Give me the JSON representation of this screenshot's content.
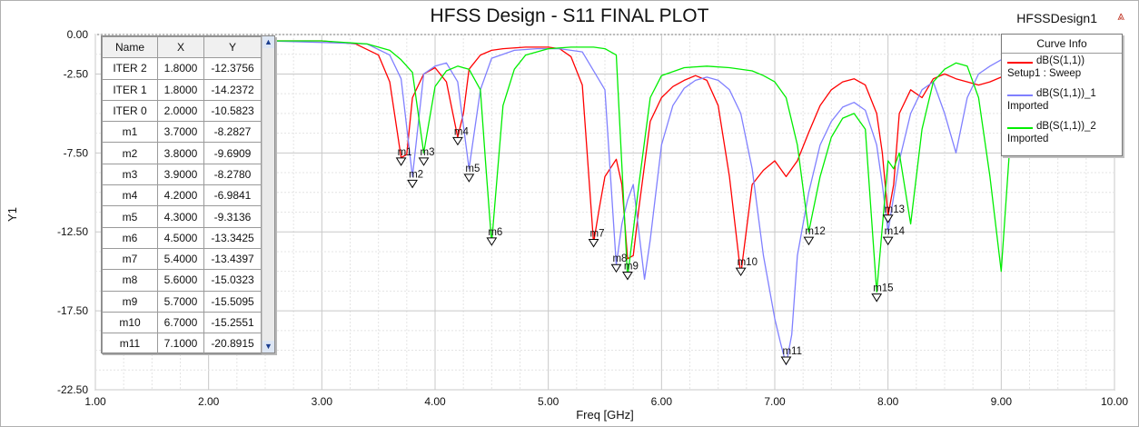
{
  "header": {
    "title": "HFSS Design - S11 FINAL PLOT",
    "design_name": "HFSSDesign1"
  },
  "chart_data": {
    "type": "line",
    "title": "HFSS Design - S11 FINAL PLOT",
    "xlabel": "Freq [GHz]",
    "ylabel": "Y1",
    "xlim": [
      1.0,
      10.0
    ],
    "ylim": [
      -22.5,
      0.0
    ],
    "xticks": [
      "1.00",
      "2.00",
      "3.00",
      "4.00",
      "5.00",
      "6.00",
      "7.00",
      "8.00",
      "9.00",
      "10.00"
    ],
    "yticks": [
      "0.00",
      "-2.50",
      "-7.50",
      "-12.50",
      "-17.50",
      "-22.50"
    ],
    "grid": true,
    "legend_title": "Curve Info",
    "legend_position": "top-right",
    "series": [
      {
        "name": "dB(S(1,1))",
        "sub": "Setup1 : Sweep",
        "color": "#ff0000",
        "x": [
          2.5,
          3.0,
          3.3,
          3.5,
          3.6,
          3.7,
          3.75,
          3.8,
          3.9,
          4.0,
          4.1,
          4.2,
          4.25,
          4.3,
          4.4,
          4.5,
          4.6,
          4.8,
          5.0,
          5.1,
          5.2,
          5.3,
          5.4,
          5.45,
          5.5,
          5.6,
          5.65,
          5.7,
          5.75,
          5.8,
          5.9,
          6.0,
          6.1,
          6.2,
          6.3,
          6.4,
          6.5,
          6.6,
          6.7,
          6.8,
          6.9,
          7.0,
          7.1,
          7.2,
          7.3,
          7.4,
          7.5,
          7.6,
          7.7,
          7.8,
          7.9,
          7.95,
          8.0,
          8.05,
          8.1,
          8.2,
          8.3,
          8.4,
          8.5,
          8.6,
          8.7,
          8.8,
          8.9,
          9.0,
          9.1,
          9.2,
          9.3,
          9.4
        ],
        "y": [
          -0.4,
          -0.4,
          -0.6,
          -1.3,
          -3.0,
          -7.8,
          -7.6,
          -4.0,
          -2.5,
          -2.1,
          -3.0,
          -6.5,
          -5.0,
          -2.2,
          -1.3,
          -1.0,
          -0.9,
          -0.8,
          -0.8,
          -0.9,
          -1.4,
          -3.2,
          -13.2,
          -11.0,
          -9.0,
          -7.9,
          -9.5,
          -14.2,
          -14.0,
          -11.0,
          -5.5,
          -4.0,
          -3.3,
          -2.9,
          -2.6,
          -2.9,
          -4.5,
          -9.0,
          -15.2,
          -9.5,
          -8.6,
          -8.0,
          -9.0,
          -8.0,
          -6.2,
          -4.5,
          -3.5,
          -3.0,
          -2.8,
          -3.2,
          -5.0,
          -7.5,
          -11.5,
          -9.5,
          -5.0,
          -3.5,
          -4.0,
          -2.8,
          -2.5,
          -2.8,
          -3.0,
          -3.2,
          -3.0,
          -2.7,
          -2.5,
          -2.3,
          -2.2,
          -2.1
        ]
      },
      {
        "name": "dB(S(1,1))_1",
        "sub": "Imported",
        "color": "#8080ff",
        "x": [
          2.5,
          3.0,
          3.4,
          3.6,
          3.7,
          3.8,
          3.9,
          4.0,
          4.1,
          4.2,
          4.3,
          4.4,
          4.5,
          4.7,
          4.9,
          5.1,
          5.3,
          5.5,
          5.6,
          5.65,
          5.7,
          5.75,
          5.8,
          5.85,
          5.9,
          6.0,
          6.1,
          6.2,
          6.3,
          6.4,
          6.5,
          6.6,
          6.7,
          6.8,
          6.9,
          7.0,
          7.05,
          7.1,
          7.15,
          7.2,
          7.3,
          7.4,
          7.5,
          7.6,
          7.7,
          7.8,
          7.9,
          7.95,
          8.0,
          8.1,
          8.2,
          8.3,
          8.4,
          8.5,
          8.6,
          8.7,
          8.8,
          8.9,
          9.0,
          9.1,
          9.15,
          9.2,
          9.3
        ],
        "y": [
          -0.4,
          -0.5,
          -0.6,
          -1.3,
          -2.8,
          -9.0,
          -2.5,
          -2.0,
          -1.8,
          -3.0,
          -8.5,
          -3.5,
          -1.5,
          -1.0,
          -0.9,
          -0.9,
          -1.1,
          -3.5,
          -14.6,
          -12.0,
          -10.5,
          -9.5,
          -12.5,
          -15.5,
          -13.0,
          -7.0,
          -4.5,
          -3.4,
          -2.9,
          -2.7,
          -2.9,
          -3.5,
          -5.0,
          -8.5,
          -14.0,
          -18.0,
          -19.5,
          -20.9,
          -19.0,
          -14.0,
          -10.0,
          -7.0,
          -5.5,
          -4.6,
          -4.3,
          -4.8,
          -7.0,
          -9.5,
          -12.5,
          -8.0,
          -5.0,
          -3.5,
          -3.0,
          -5.0,
          -7.5,
          -4.0,
          -2.5,
          -2.0,
          -1.6,
          -1.3,
          -1.2,
          -1.15,
          -1.1
        ]
      },
      {
        "name": "dB(S(1,1))_2",
        "sub": "Imported",
        "color": "#00ee00",
        "x": [
          2.5,
          3.0,
          3.4,
          3.6,
          3.7,
          3.8,
          3.9,
          4.0,
          4.1,
          4.2,
          4.3,
          4.4,
          4.45,
          4.5,
          4.6,
          4.7,
          4.8,
          5.0,
          5.2,
          5.4,
          5.5,
          5.6,
          5.7,
          5.8,
          5.9,
          6.0,
          6.2,
          6.4,
          6.6,
          6.8,
          6.9,
          7.0,
          7.1,
          7.2,
          7.3,
          7.4,
          7.5,
          7.6,
          7.7,
          7.8,
          7.9,
          8.0,
          8.05,
          8.1,
          8.2,
          8.3,
          8.4,
          8.5,
          8.6,
          8.7,
          8.8,
          8.9,
          9.0,
          9.1,
          9.2,
          9.3
        ],
        "y": [
          -0.4,
          -0.4,
          -0.6,
          -1.0,
          -1.6,
          -2.4,
          -7.5,
          -3.3,
          -2.3,
          -2.0,
          -2.2,
          -3.5,
          -8.5,
          -13.2,
          -4.5,
          -2.2,
          -1.3,
          -0.9,
          -0.8,
          -0.8,
          -0.9,
          -1.3,
          -15.4,
          -9.5,
          -4.0,
          -2.6,
          -2.1,
          -2.0,
          -2.1,
          -2.3,
          -2.6,
          -3.0,
          -4.0,
          -7.0,
          -12.5,
          -9.0,
          -6.5,
          -5.3,
          -5.0,
          -6.0,
          -16.3,
          -8.0,
          -8.5,
          -7.5,
          -12.0,
          -6.0,
          -3.0,
          -2.2,
          -1.8,
          -2.0,
          -4.0,
          -9.0,
          -15.0,
          -4.5,
          -2.0,
          -1.0
        ]
      }
    ],
    "markers": [
      {
        "name": "ITER 2",
        "x": 1.8,
        "y": -12.3756
      },
      {
        "name": "ITER 1",
        "x": 1.8,
        "y": -14.2372
      },
      {
        "name": "ITER 0",
        "x": 2.0,
        "y": -10.5823
      },
      {
        "name": "m1",
        "x": 3.7,
        "y": -8.2827
      },
      {
        "name": "m2",
        "x": 3.8,
        "y": -9.6909
      },
      {
        "name": "m3",
        "x": 3.9,
        "y": -8.278
      },
      {
        "name": "m4",
        "x": 4.2,
        "y": -6.9841
      },
      {
        "name": "m5",
        "x": 4.3,
        "y": -9.3136
      },
      {
        "name": "m6",
        "x": 4.5,
        "y": -13.3425
      },
      {
        "name": "m7",
        "x": 5.4,
        "y": -13.4397
      },
      {
        "name": "m8",
        "x": 5.6,
        "y": -15.0323
      },
      {
        "name": "m9",
        "x": 5.7,
        "y": -15.5095
      },
      {
        "name": "m10",
        "x": 6.7,
        "y": -15.2551
      },
      {
        "name": "m11",
        "x": 7.1,
        "y": -20.8915
      },
      {
        "name": "m12",
        "x": 7.3,
        "y": -13.3
      },
      {
        "name": "m13",
        "x": 8.0,
        "y": -11.9
      },
      {
        "name": "m14",
        "x": 8.0,
        "y": -13.3
      },
      {
        "name": "m15",
        "x": 7.9,
        "y": -16.9
      }
    ]
  },
  "table": {
    "headers": [
      "Name",
      "X",
      "Y"
    ],
    "rows": [
      [
        "ITER 2",
        "1.8000",
        "-12.3756"
      ],
      [
        "ITER 1",
        "1.8000",
        "-14.2372"
      ],
      [
        "ITER 0",
        "2.0000",
        "-10.5823"
      ],
      [
        "m1",
        "3.7000",
        "-8.2827"
      ],
      [
        "m2",
        "3.8000",
        "-9.6909"
      ],
      [
        "m3",
        "3.9000",
        "-8.2780"
      ],
      [
        "m4",
        "4.2000",
        "-6.9841"
      ],
      [
        "m5",
        "4.3000",
        "-9.3136"
      ],
      [
        "m6",
        "4.5000",
        "-13.3425"
      ],
      [
        "m7",
        "5.4000",
        "-13.4397"
      ],
      [
        "m8",
        "5.6000",
        "-15.0323"
      ],
      [
        "m9",
        "5.7000",
        "-15.5095"
      ],
      [
        "m10",
        "6.7000",
        "-15.2551"
      ],
      [
        "m11",
        "7.1000",
        "-20.8915"
      ]
    ]
  },
  "legend": {
    "title": "Curve Info",
    "items": [
      {
        "name": "dB(S(1,1))",
        "sub": "Setup1 : Sweep",
        "color": "#ff0000"
      },
      {
        "name": "dB(S(1,1))_1",
        "sub": "Imported",
        "color": "#8080ff"
      },
      {
        "name": "dB(S(1,1))_2",
        "sub": "Imported",
        "color": "#00ee00"
      }
    ]
  },
  "icons": {
    "scroll_up": "scroll-up-arrow-icon",
    "scroll_down": "scroll-down-arrow-icon",
    "logo": "hfss-logo-icon"
  }
}
